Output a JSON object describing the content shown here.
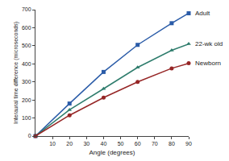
{
  "chart_data": {
    "type": "line",
    "x_label": "Angle (degrees)",
    "y_label": "Interaural time difference (microseconds)",
    "x": [
      0,
      20,
      40,
      60,
      80,
      90
    ],
    "series": [
      {
        "name": "Adult",
        "color": "#2b5ca8",
        "marker": "square",
        "values": [
          0,
          180,
          355,
          505,
          625,
          680
        ]
      },
      {
        "name": "22-wk old",
        "color": "#2f7d6d",
        "marker": "triangle-up",
        "values": [
          0,
          145,
          262,
          380,
          475,
          510
        ]
      },
      {
        "name": "Newborn",
        "color": "#962626",
        "marker": "circle",
        "values": [
          0,
          115,
          213,
          300,
          375,
          403
        ]
      }
    ],
    "xlim": [
      0,
      90
    ],
    "xticks": [
      10,
      20,
      30,
      40,
      50,
      60,
      70,
      80,
      90
    ],
    "ylim": [
      0,
      700
    ],
    "yticks": [
      0,
      100,
      200,
      300,
      400,
      500,
      600,
      700
    ],
    "grid": false
  }
}
